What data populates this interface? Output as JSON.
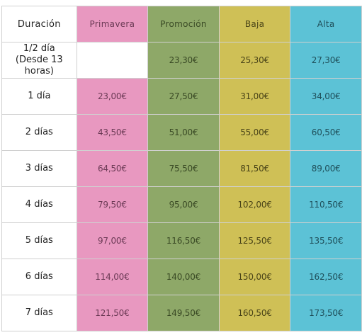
{
  "table": {
    "headers": [
      "Duración",
      "Primavera",
      "Promoción",
      "Baja",
      "Alta"
    ],
    "rows": [
      {
        "duration_line1": "1/2 día",
        "duration_line2": "(Desde 13 horas)",
        "primavera": "",
        "promocion": "23,30€",
        "baja": "25,30€",
        "alta": "27,30€"
      },
      {
        "duration_line1": "1 día",
        "duration_line2": "",
        "primavera": "23,00€",
        "promocion": "27,50€",
        "baja": "31,00€",
        "alta": "34,00€"
      },
      {
        "duration_line1": "2 días",
        "duration_line2": "",
        "primavera": "43,50€",
        "promocion": "51,00€",
        "baja": "55,00€",
        "alta": "60,50€"
      },
      {
        "duration_line1": "3 días",
        "duration_line2": "",
        "primavera": "64,50€",
        "promocion": "75,50€",
        "baja": "81,50€",
        "alta": "89,00€"
      },
      {
        "duration_line1": "4 días",
        "duration_line2": "",
        "primavera": "79,50€",
        "promocion": "95,00€",
        "baja": "102,00€",
        "alta": "110,50€"
      },
      {
        "duration_line1": "5 días",
        "duration_line2": "",
        "primavera": "97,00€",
        "promocion": "116,50€",
        "baja": "125,50€",
        "alta": "135,50€"
      },
      {
        "duration_line1": "6 días",
        "duration_line2": "",
        "primavera": "114,00€",
        "promocion": "140,00€",
        "baja": "150,00€",
        "alta": "162,50€"
      },
      {
        "duration_line1": "7 días",
        "duration_line2": "",
        "primavera": "121,50€",
        "promocion": "149,50€",
        "baja": "160,50€",
        "alta": "173,50€"
      }
    ]
  },
  "colors": {
    "primavera": "#e898c0",
    "promocion": "#8ea868",
    "baja": "#cfc056",
    "alta": "#5cc2d6"
  }
}
